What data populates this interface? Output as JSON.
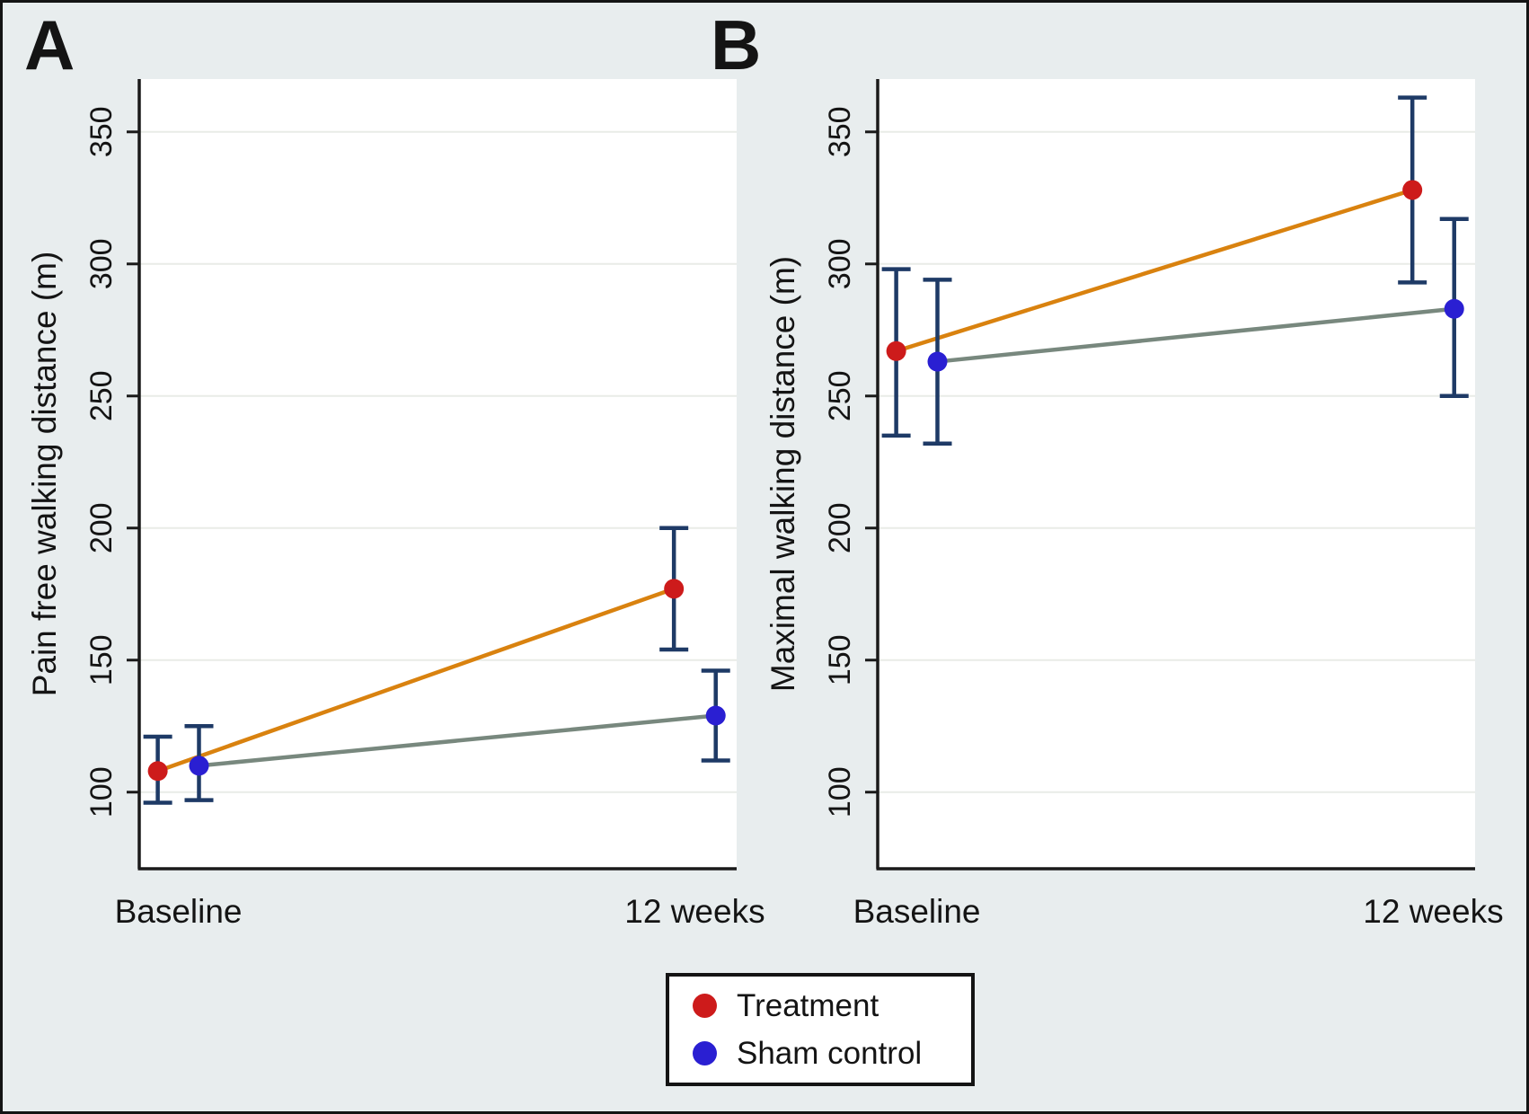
{
  "figure": {
    "background_color": "#e8edee",
    "plot_background": "#ffffff",
    "axis_color": "#1a1a1a",
    "gridline_color": "#e9ece7",
    "error_bar_color": "#1e3a66"
  },
  "legend": {
    "items": [
      {
        "label": "Treatment",
        "color": "#cd1b1b",
        "marker": "circle-icon"
      },
      {
        "label": "Sham control",
        "color": "#2a1fd2",
        "marker": "circle-icon"
      }
    ]
  },
  "chart_data": [
    {
      "type": "line",
      "panel_label": "A",
      "ylabel": "Pain free walking distance (m)",
      "categories": [
        "Baseline",
        "12 weeks"
      ],
      "yticks": [
        100,
        150,
        200,
        250,
        300,
        350
      ],
      "ylim": [
        71,
        370
      ],
      "grid": true,
      "error_bars": true,
      "series": [
        {
          "name": "Treatment",
          "marker_color": "#cd1b1b",
          "line_color": "#d9820f",
          "x_frac": [
            0.031,
            0.895
          ],
          "values": [
            108,
            177
          ],
          "ci_low": [
            96,
            154
          ],
          "ci_high": [
            121,
            200
          ]
        },
        {
          "name": "Sham control",
          "marker_color": "#2a1fd2",
          "line_color": "#78887e",
          "x_frac": [
            0.1,
            0.965
          ],
          "values": [
            110,
            129
          ],
          "ci_low": [
            97,
            112
          ],
          "ci_high": [
            125,
            146
          ]
        }
      ]
    },
    {
      "type": "line",
      "panel_label": "B",
      "ylabel": "Maximal walking distance (m)",
      "categories": [
        "Baseline",
        "12 weeks"
      ],
      "yticks": [
        100,
        150,
        200,
        250,
        300,
        350
      ],
      "ylim": [
        71,
        370
      ],
      "grid": true,
      "error_bars": true,
      "series": [
        {
          "name": "Treatment",
          "marker_color": "#cd1b1b",
          "line_color": "#d9820f",
          "x_frac": [
            0.031,
            0.895
          ],
          "values": [
            267,
            328
          ],
          "ci_low": [
            235,
            293
          ],
          "ci_high": [
            298,
            363
          ]
        },
        {
          "name": "Sham control",
          "marker_color": "#2a1fd2",
          "line_color": "#78887e",
          "x_frac": [
            0.1,
            0.965
          ],
          "values": [
            263,
            283
          ],
          "ci_low": [
            232,
            250
          ],
          "ci_high": [
            294,
            317
          ]
        }
      ]
    }
  ]
}
